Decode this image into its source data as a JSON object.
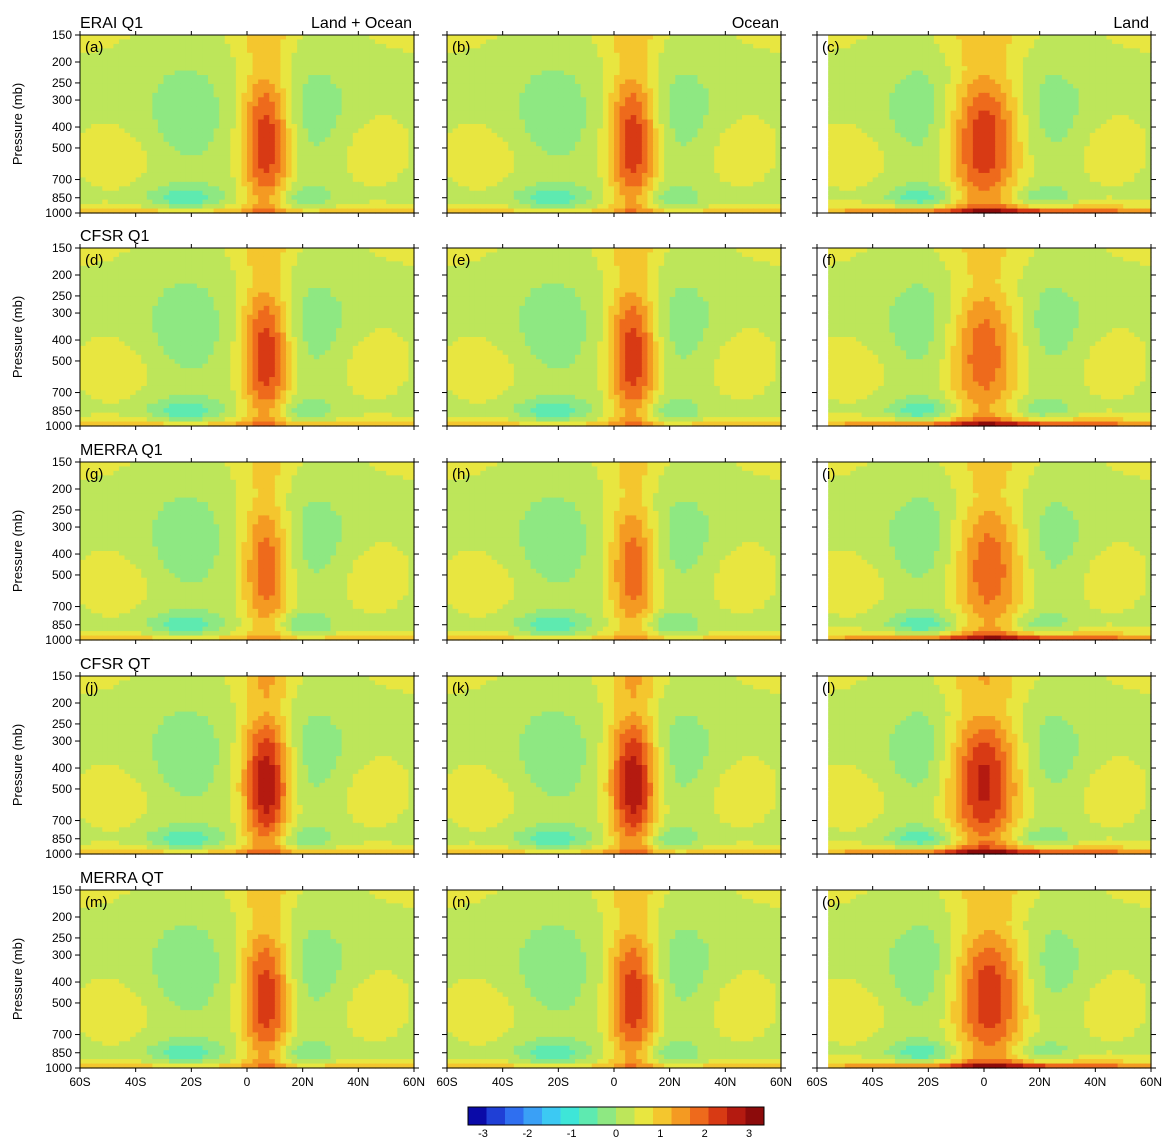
{
  "figure": {
    "column_titles": [
      "Land + Ocean",
      "Ocean",
      "Land"
    ],
    "ylabel": "Pressure (mb)",
    "pressure_ticks": [
      "150",
      "200",
      "250",
      "300",
      "400",
      "500",
      "700",
      "850",
      "1000"
    ],
    "lat_ticks": [
      "60S",
      "40S",
      "20S",
      "0",
      "20N",
      "40N",
      "60N"
    ],
    "colorbar": {
      "tick_labels": [
        "-3",
        "-2",
        "-1",
        "0",
        "1",
        "2",
        "3"
      ],
      "colors": [
        "#0a0aa8",
        "#1f3fd6",
        "#2f6ff0",
        "#3aa0f6",
        "#3cc9f3",
        "#3ee6d8",
        "#5eeab0",
        "#8ee882",
        "#bde65a",
        "#e8e640",
        "#f4c62e",
        "#f49a22",
        "#ee6a1c",
        "#d83a14",
        "#b41a10",
        "#8c0b0b"
      ]
    },
    "rows": [
      {
        "title": "ERAI Q1",
        "panels": [
          "(a)",
          "(b)",
          "(c)"
        ]
      },
      {
        "title": "CFSR Q1",
        "panels": [
          "(d)",
          "(e)",
          "(f)"
        ]
      },
      {
        "title": "MERRA Q1",
        "panels": [
          "(g)",
          "(h)",
          "(i)"
        ]
      },
      {
        "title": "CFSR QT",
        "panels": [
          "(j)",
          "(k)",
          "(l)"
        ]
      },
      {
        "title": "MERRA QT",
        "panels": [
          "(m)",
          "(n)",
          "(o)"
        ]
      }
    ]
  },
  "chart_data": {
    "type": "heatmap",
    "x_label_ticks": [
      "60S",
      "40S",
      "20S",
      "0",
      "20N",
      "40N",
      "60N"
    ],
    "y_label_ticks": [
      150,
      200,
      250,
      300,
      400,
      500,
      700,
      850,
      1000
    ],
    "xlim": [
      -60,
      60
    ],
    "ylim": [
      1000,
      150
    ],
    "color_range": [
      -3,
      3
    ],
    "colorbar_ticks": [
      -3,
      -2,
      -1,
      0,
      1,
      2,
      3
    ],
    "panels": [
      {
        "label": "(a)",
        "peak_lat": 7,
        "peak_value": 2.0,
        "surface_max": 1.5
      },
      {
        "label": "(b)",
        "peak_lat": 7,
        "peak_value": 2.0,
        "surface_max": 1.3
      },
      {
        "label": "(c)",
        "peak_lat": 0,
        "peak_value": 2.0,
        "surface_max": 3.0
      },
      {
        "label": "(d)",
        "peak_lat": 7,
        "peak_value": 2.0,
        "surface_max": 1.6
      },
      {
        "label": "(e)",
        "peak_lat": 7,
        "peak_value": 2.0,
        "surface_max": 1.4
      },
      {
        "label": "(f)",
        "peak_lat": 0,
        "peak_value": 1.6,
        "surface_max": 3.0
      },
      {
        "label": "(g)",
        "peak_lat": 7,
        "peak_value": 1.6,
        "surface_max": 1.4
      },
      {
        "label": "(h)",
        "peak_lat": 7,
        "peak_value": 1.6,
        "surface_max": 1.3
      },
      {
        "label": "(i)",
        "peak_lat": 2,
        "peak_value": 1.6,
        "surface_max": 3.0
      },
      {
        "label": "(j)",
        "peak_lat": 7,
        "peak_value": 2.4,
        "surface_max": 1.6
      },
      {
        "label": "(k)",
        "peak_lat": 7,
        "peak_value": 2.4,
        "surface_max": 1.5
      },
      {
        "label": "(l)",
        "peak_lat": 0,
        "peak_value": 2.2,
        "surface_max": 3.0
      },
      {
        "label": "(m)",
        "peak_lat": 7,
        "peak_value": 2.0,
        "surface_max": 1.4
      },
      {
        "label": "(n)",
        "peak_lat": 7,
        "peak_value": 2.0,
        "surface_max": 1.3
      },
      {
        "label": "(o)",
        "peak_lat": 2,
        "peak_value": 2.0,
        "surface_max": 3.0
      }
    ]
  }
}
